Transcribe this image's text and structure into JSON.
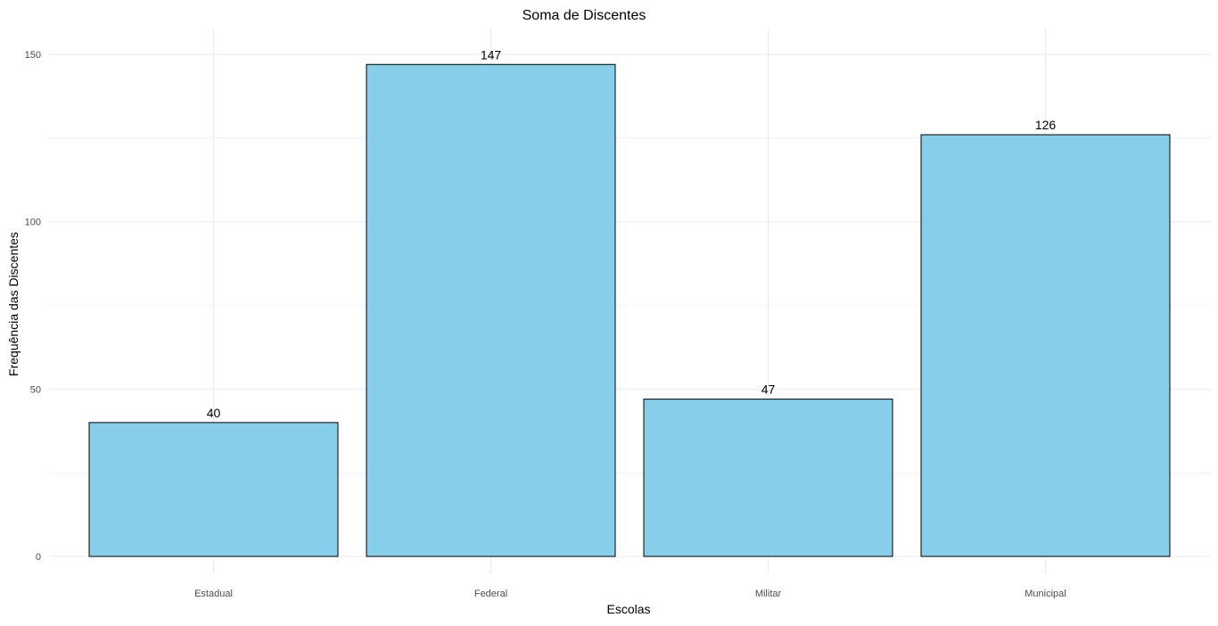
{
  "chart_data": {
    "type": "bar",
    "title": "Soma de Discentes",
    "xlabel": "Escolas",
    "ylabel": "Frequência das Discentes",
    "categories": [
      "Estadual",
      "Federal",
      "Militar",
      "Municipal"
    ],
    "values": [
      40,
      147,
      47,
      126
    ],
    "data_labels": [
      "40",
      "147",
      "47",
      "126"
    ],
    "ylim": [
      0,
      150
    ],
    "yticks": [
      0,
      50,
      100,
      150
    ],
    "ytick_labels": [
      "0",
      "50",
      "100",
      "150"
    ],
    "grid": true,
    "legend": "none",
    "colors": {
      "bar_fill": "#87CEEB",
      "bar_stroke": "#000000",
      "grid": "#ebebeb",
      "text": "#000000",
      "tick_text": "#4d4d4d"
    }
  }
}
